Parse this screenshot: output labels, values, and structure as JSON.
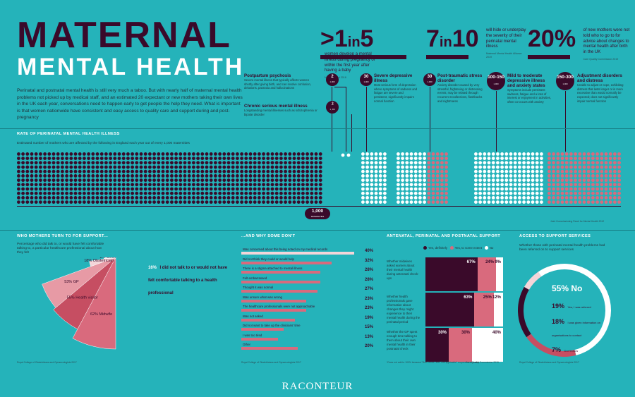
{
  "header": {
    "title_line1": "MATERNAL",
    "title_line2": "MENTAL HEALTH",
    "intro": "Perinatal and postnatal mental health is still very much a taboo. But with nearly half of maternal mental health problems not picked up by medical staff, and an estimated 20 expectant or new mothers taking their own lives in the UK each year, conversations need to happen early to get people the help they need. What is important is that women nationwide have consistent and easy access to quality care and support during and post-pregnancy"
  },
  "stats": [
    {
      "big_prefix": ">1",
      "big_in": "in",
      "big_suffix": "5",
      "text": "women develop a mental illness during pregnancy or within the first year after having a baby",
      "source": "NHS England 2018"
    },
    {
      "big_prefix": "7",
      "big_in": "in",
      "big_suffix": "10",
      "text": "will hide or underplay the severity of their perinatal mental illness",
      "source": "Maternal Mental Health Alliance 2019"
    },
    {
      "big_prefix": "20%",
      "big_in": "",
      "big_suffix": "",
      "text": "of new mothers were not told who to go to for advice about changes to mental health after birth in the UK",
      "source": "Care Quality Commission 2019"
    }
  ],
  "categories": [
    {
      "badge": "2",
      "unit": "1,000",
      "title": "Postpartum psychosis",
      "desc": "Severe mental illness that typically affects women shortly after giving birth, and can involve confusion, delusions, paranoia and hallucinations"
    },
    {
      "badge": "2",
      "unit": "1,000",
      "title": "Chronic serious mental illness",
      "desc": "Longstanding mental illnesses such as schizophrenia or bipolar disorder"
    },
    {
      "badge": "30",
      "unit": "1,000",
      "title": "Severe depressive illness",
      "desc": "Most serious form of depression where symptoms of sadness and fatigue are severe and persistent, significantly impairs normal function"
    },
    {
      "badge": "30",
      "unit": "1,000",
      "title": "Post-traumatic stress disorder",
      "desc": "Anxiety disorder caused by very stressful, frightening or distressing events; may be related through recurrent recollections, flashbacks and nightmares"
    },
    {
      "badge": "100-150",
      "unit": "1,000",
      "title": "Mild to moderate depressive illness and anxiety states",
      "desc": "Symptoms include persistent sadness, fatigue and a loss of interest or enjoyment in activities, often co-occurs with anxiety"
    },
    {
      "badge": "150-300",
      "unit": "1,000",
      "title": "Adjustment disorders and distress",
      "desc": "Unable to adjust or cope, exhibiting distress that lasts longer or is more excessive than would normally be expected; does not significantly impair normal function"
    }
  ],
  "rate_section": {
    "heading": "RATE OF PERINATAL MENTAL HEALTH ILLNESS",
    "subheading": "Estimated number of mothers who are affected by the following in England each year out of every 1,000 maternities",
    "total_badge": "1,000",
    "total_unit": "MATERNITIES",
    "source": "Joint Commissioning Panel for Mental Health 2012"
  },
  "who_section": {
    "heading": "WHO MOTHERS TURN TO FOR SUPPORT...",
    "subheading": "Percentage who did talk to, or would have felt comfortable talking to, a particular healthcare professional about how they felt",
    "slices": [
      {
        "label": "62% Midwife",
        "value": 62,
        "color": "#d96a7d"
      },
      {
        "label": "55% Health visitor",
        "value": 55,
        "color": "#c64e62"
      },
      {
        "label": "53% GP",
        "value": 53,
        "color": "#e79aa5"
      },
      {
        "label": "18% Obstetrician",
        "value": 18,
        "color": "#f4d5d9"
      },
      {
        "label": "8% Other",
        "value": 8,
        "color": "#fbeaec"
      }
    ],
    "callout_value": "16%",
    "callout_text": "I did not talk to or would not have felt comfortable talking to a health professional",
    "source": "Royal College of Obstetricians and Gynaecologists 2017"
  },
  "why_section": {
    "heading": "...AND WHY SOME DON'T",
    "bars": [
      {
        "label": "Was concerned about this being noted on my medical records",
        "value": 40,
        "display": "40%"
      },
      {
        "label": "Did not think they could or would help",
        "value": 32,
        "display": "32%"
      },
      {
        "label": "There is a stigma attached to mental illness",
        "value": 28,
        "display": "28%"
      },
      {
        "label": "Felt embarrassed",
        "value": 28,
        "display": "28%"
      },
      {
        "label": "Thought it was normal",
        "value": 27,
        "display": "27%"
      },
      {
        "label": "Was unsure what was wrong",
        "value": 23,
        "display": "23%"
      },
      {
        "label": "The healthcare professionals were not approachable",
        "value": 23,
        "display": "23%"
      },
      {
        "label": "Was not asked",
        "value": 19,
        "display": "19%"
      },
      {
        "label": "Did not want to take up the clinicians' time",
        "value": 15,
        "display": "15%"
      },
      {
        "label": "I was too tired",
        "value": 13,
        "display": "13%"
      },
      {
        "label": "Other",
        "value": 20,
        "display": "20%"
      }
    ],
    "source": "Royal College of Obstetricians and Gynaecologists 2017"
  },
  "support_section": {
    "heading": "ANTENATAL, PERINATAL AND POSTNATAL SUPPORT",
    "legend": [
      {
        "label": "Yes, definitely",
        "color": "#3a0a2a"
      },
      {
        "label": "Yes, to some extent",
        "color": "#d96a7d"
      },
      {
        "label": "No",
        "color": "#ffffff"
      }
    ],
    "rows": [
      {
        "question": "Whether midwives asked women about their mental health during antenatal check-ups",
        "values": [
          67,
          24,
          9
        ],
        "display": [
          "67%",
          "24%",
          "9%"
        ]
      },
      {
        "question": "Whether health professionals gave information about changes they might experience to their mental health during the perinatal period",
        "values": [
          63,
          25,
          12
        ],
        "display": [
          "63%",
          "25%",
          "12%"
        ]
      },
      {
        "question": "Whether the GP spent enough time talking to them about their own mental health in their postnatal check",
        "values": [
          30,
          30,
          40
        ],
        "display": [
          "30%",
          "30%",
          "40%"
        ]
      }
    ],
    "footnote": "*Does not add to 100% because \"Don't know\" and \"Not applicable\" responses excluded",
    "source": "Care Quality Commission 2019"
  },
  "access_section": {
    "heading": "ACCESS TO SUPPORT SERVICES",
    "subheading": "Whether those with perinatal mental health problems had been referred on to support services",
    "center_value": "55%",
    "center_label": "No",
    "items": [
      {
        "value": "19%",
        "label": "Yes, I was referred"
      },
      {
        "value": "18%",
        "label": "I was given information on organisations to contact"
      },
      {
        "value": "7%",
        "label": "Don't know"
      }
    ],
    "donut": [
      {
        "value": 55,
        "color": "#ffffff"
      },
      {
        "value": 19,
        "color": "#c64e62"
      },
      {
        "value": 18,
        "color": "#3a0a2a"
      },
      {
        "value": 7,
        "color": "#f4d5d9"
      }
    ],
    "source": "Royal College of Obstetricians and Gynaecologists 2017"
  },
  "footer": {
    "brand": "RACONTEUR"
  }
}
